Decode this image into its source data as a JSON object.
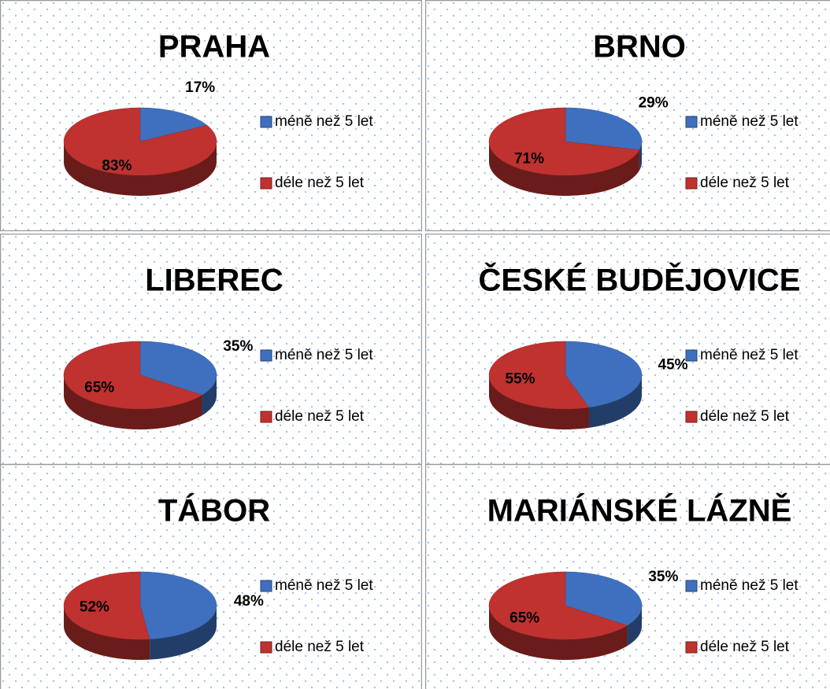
{
  "chart_data": [
    {
      "type": "pie",
      "title": "PRAHA",
      "categories": [
        "méně než 5 let",
        "déle než 5 let"
      ],
      "values": [
        17,
        83
      ],
      "value_labels": [
        "17%",
        "83%"
      ],
      "colors": [
        "#3f6fbf",
        "#c0322f"
      ],
      "legend": "right"
    },
    {
      "type": "pie",
      "title": "BRNO",
      "categories": [
        "méně než 5 let",
        "déle než 5 let"
      ],
      "values": [
        29,
        71
      ],
      "value_labels": [
        "29%",
        "71%"
      ],
      "colors": [
        "#3f6fbf",
        "#c0322f"
      ],
      "legend": "right"
    },
    {
      "type": "pie",
      "title": "LIBEREC",
      "categories": [
        "méně než 5 let",
        "déle než 5 let"
      ],
      "values": [
        35,
        65
      ],
      "value_labels": [
        "35%",
        "65%"
      ],
      "colors": [
        "#3f6fbf",
        "#c0322f"
      ],
      "legend": "right"
    },
    {
      "type": "pie",
      "title": "ČESKÉ BUDĚJOVICE",
      "categories": [
        "méně než 5 let",
        "déle než 5 let"
      ],
      "values": [
        45,
        55
      ],
      "value_labels": [
        "45%",
        "55%"
      ],
      "colors": [
        "#3f6fbf",
        "#c0322f"
      ],
      "legend": "right"
    },
    {
      "type": "pie",
      "title": "TÁBOR",
      "categories": [
        "méně než 5 let",
        "déle než 5 let"
      ],
      "values": [
        48,
        52
      ],
      "value_labels": [
        "48%",
        "52%"
      ],
      "colors": [
        "#3f6fbf",
        "#c0322f"
      ],
      "legend": "right"
    },
    {
      "type": "pie",
      "title": "MARIÁNSKÉ LÁZNĚ",
      "categories": [
        "méně než 5 let",
        "déle než 5 let"
      ],
      "values": [
        35,
        65
      ],
      "value_labels": [
        "35%",
        "65%"
      ],
      "colors": [
        "#3f6fbf",
        "#c0322f"
      ],
      "legend": "right"
    }
  ]
}
